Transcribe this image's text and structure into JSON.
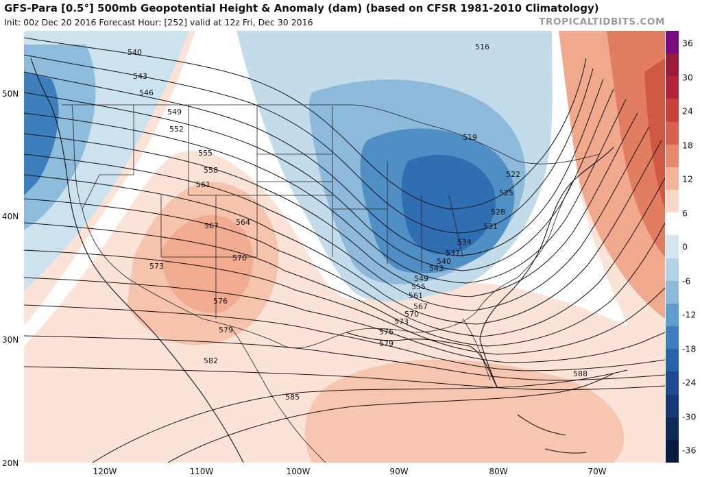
{
  "header": {
    "title": "GFS-Para [0.5°] 500mb Geopotential Height & Anomaly (dam) (based on CFSR 1981-2010 Climatology)",
    "subtitle": "Init: 00z Dec 20 2016   Forecast Hour: [252]   valid at 12z Fri, Dec 30 2016",
    "credit": "TROPICALTIDBITS.COM"
  },
  "axes": {
    "lat_labels": [
      "50N",
      "40N",
      "30N",
      "20N"
    ],
    "lon_labels": [
      "120W",
      "110W",
      "100W",
      "90W",
      "80W",
      "70W"
    ]
  },
  "contour_labels": [
    "540",
    "543",
    "546",
    "549",
    "552",
    "555",
    "558",
    "561",
    "564",
    "567",
    "570",
    "573",
    "576",
    "579",
    "582",
    "585",
    "588",
    "516",
    "519",
    "522",
    "525",
    "528",
    "531",
    "534",
    "537",
    "540",
    "543",
    "549",
    "555",
    "561",
    "567",
    "570",
    "573",
    "576",
    "579"
  ],
  "colorbar": {
    "ticks": [
      "36",
      "30",
      "24",
      "18",
      "12",
      "6",
      "0",
      "-6",
      "-12",
      "-18",
      "-24",
      "-30",
      "-36"
    ],
    "colors": [
      "#7a0a80",
      "#9b1a3a",
      "#b3263a",
      "#c8403a",
      "#d8624f",
      "#e6896f",
      "#f2b49b",
      "#fad7c6",
      "#ffffff",
      "#d6e6f0",
      "#b5d3e7",
      "#8dbadb",
      "#5f9dcd",
      "#3d7fbd",
      "#2862a8",
      "#1d4a8f",
      "#163975",
      "#0e2858",
      "#0a1a3e"
    ]
  }
}
